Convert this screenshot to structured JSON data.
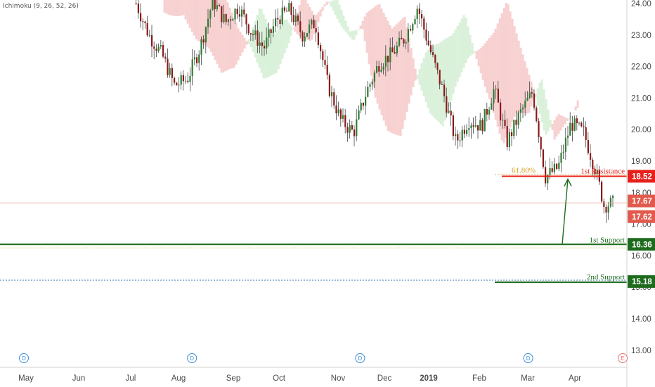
{
  "indicator": {
    "label": "Ichimoku (9, 26, 52, 26)"
  },
  "chart_data": {
    "type": "candlestick",
    "y_axis": {
      "range": [
        12.5,
        24.1
      ],
      "ticks": [
        "13.00",
        "14.00",
        "15.00",
        "16.00",
        "17.00",
        "18.00",
        "19.00",
        "20.00",
        "21.00",
        "22.00",
        "23.00",
        "24.00"
      ]
    },
    "x_axis": {
      "labels": [
        "May",
        "Jun",
        "Jul",
        "Aug",
        "Sep",
        "Oct",
        "Nov",
        "Dec",
        "2019",
        "Feb",
        "Mar",
        "Apr"
      ],
      "bold": [
        "2019"
      ]
    },
    "price_path": [
      [
        "2018-07-01",
        24.0
      ],
      [
        "2018-07-08",
        23.0
      ],
      [
        "2018-07-15",
        22.4
      ],
      [
        "2018-07-22",
        21.4
      ],
      [
        "2018-07-29",
        21.6
      ],
      [
        "2018-08-05",
        22.6
      ],
      [
        "2018-08-12",
        24.1
      ],
      [
        "2018-08-19",
        23.4
      ],
      [
        "2018-08-26",
        23.9
      ],
      [
        "2018-09-02",
        23.1
      ],
      [
        "2018-09-09",
        22.6
      ],
      [
        "2018-09-16",
        23.5
      ],
      [
        "2018-09-23",
        23.8
      ],
      [
        "2018-09-30",
        23.0
      ],
      [
        "2018-10-07",
        23.4
      ],
      [
        "2018-10-14",
        21.4
      ],
      [
        "2018-10-21",
        20.3
      ],
      [
        "2018-10-28",
        19.9
      ],
      [
        "2018-11-04",
        21.2
      ],
      [
        "2018-11-11",
        22.1
      ],
      [
        "2018-11-18",
        22.4
      ],
      [
        "2018-11-25",
        22.9
      ],
      [
        "2018-12-02",
        23.9
      ],
      [
        "2018-12-09",
        22.5
      ],
      [
        "2018-12-16",
        21.2
      ],
      [
        "2018-12-23",
        19.6
      ],
      [
        "2018-12-30",
        20.3
      ],
      [
        "2019-01-06",
        20.1
      ],
      [
        "2019-01-13",
        21.3
      ],
      [
        "2019-01-20",
        19.6
      ],
      [
        "2019-01-27",
        20.5
      ],
      [
        "2019-02-03",
        21.2
      ],
      [
        "2019-02-10",
        18.5
      ],
      [
        "2019-02-17",
        18.8
      ],
      [
        "2019-02-24",
        20.2
      ],
      [
        "2019-03-03",
        19.9
      ],
      [
        "2019-03-10",
        18.6
      ],
      [
        "2019-03-14",
        17.6
      ],
      [
        "2019-03-19",
        17.67
      ]
    ],
    "cloud": {
      "note": "Ichimoku cloud shading"
    },
    "levels": {
      "resistance": {
        "label": "1st Resistance",
        "value": 18.52,
        "badge": "18.52",
        "color": "#e8201b",
        "fib": "61.80%"
      },
      "support1": {
        "label": "1st Support",
        "value": 16.36,
        "badge": "16.36",
        "color": "#1e6b1e"
      },
      "support2": {
        "label": "2nd Support",
        "value": 15.18,
        "badge": "15.18",
        "color": "#1e6b1e"
      },
      "last_price": {
        "badge": "17.67",
        "value": 17.67,
        "color": "#e25a4d"
      },
      "prev_close": {
        "badge": "17.62",
        "value": 17.62,
        "color": "#e25a4d"
      }
    },
    "event_markers": [
      {
        "label": "D",
        "date": "2018-05-01"
      },
      {
        "label": "D",
        "date": "2018-08-01"
      },
      {
        "label": "D",
        "date": "2018-11-01"
      },
      {
        "label": "D",
        "date": "2019-02-01"
      },
      {
        "label": "E",
        "date": "2019-04-28"
      }
    ],
    "colors": {
      "up": "#2e7d32",
      "down": "#8b1a1a",
      "cloud_bull": "#d9f0d9",
      "cloud_bear": "#f7d0d0"
    }
  }
}
